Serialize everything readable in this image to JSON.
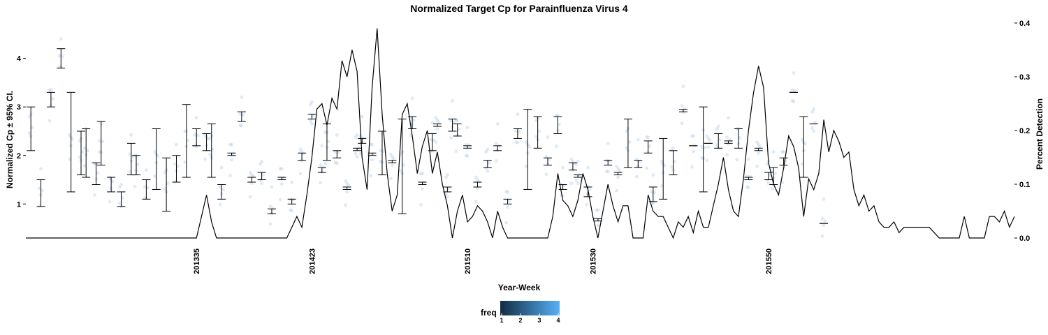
{
  "chart_data": {
    "type": "line",
    "title": "Normalized Target Cp for Parainfluenza Virus 4",
    "xlabel": "Year-Week",
    "ylabel_left": "Normalized Cp  ± 95% CI.",
    "ylabel_right": "Percent Detection",
    "x_tick_labels": [
      "201335",
      "201423",
      "201510",
      "201530",
      "201550"
    ],
    "x_tick_positions": [
      34,
      57,
      88,
      113,
      148
    ],
    "y_left_ticks": [
      "1",
      "2",
      "3",
      "4"
    ],
    "y_left_ticks_values": [
      1,
      2,
      3,
      4
    ],
    "y_left_range": [
      0.3,
      4.8
    ],
    "y_right_ticks": [
      "0.0",
      "0.1",
      "0.2",
      "0.3",
      "0.4"
    ],
    "y_right_ticks_values": [
      0.0,
      0.1,
      0.2,
      0.3,
      0.4
    ],
    "y_right_range": [
      0.0,
      0.4
    ],
    "x_range": [
      0,
      197
    ],
    "legend": {
      "title": "freq",
      "ticks": [
        "1",
        "2",
        "3",
        "4"
      ],
      "color_low": "#132b43",
      "color_high": "#56b1f7"
    },
    "series": [
      {
        "kind": "percent_detection_line",
        "points": [
          [
            0,
            0.0
          ],
          [
            10,
            0.0
          ],
          [
            20,
            0.0
          ],
          [
            30,
            0.0
          ],
          [
            34,
            0.0
          ],
          [
            35,
            0.04
          ],
          [
            36,
            0.08
          ],
          [
            37,
            0.03
          ],
          [
            38,
            0.0
          ],
          [
            45,
            0.0
          ],
          [
            52,
            0.0
          ],
          [
            53,
            0.02
          ],
          [
            54,
            0.04
          ],
          [
            55,
            0.02
          ],
          [
            56,
            0.08
          ],
          [
            57,
            0.15
          ],
          [
            58,
            0.24
          ],
          [
            59,
            0.25
          ],
          [
            60,
            0.21
          ],
          [
            61,
            0.26
          ],
          [
            62,
            0.24
          ],
          [
            63,
            0.33
          ],
          [
            64,
            0.3
          ],
          [
            65,
            0.35
          ],
          [
            66,
            0.31
          ],
          [
            67,
            0.15
          ],
          [
            68,
            0.09
          ],
          [
            69,
            0.28
          ],
          [
            70,
            0.39
          ],
          [
            71,
            0.23
          ],
          [
            72,
            0.12
          ],
          [
            73,
            0.05
          ],
          [
            74,
            0.08
          ],
          [
            75,
            0.23
          ],
          [
            76,
            0.25
          ],
          [
            77,
            0.19
          ],
          [
            78,
            0.12
          ],
          [
            79,
            0.17
          ],
          [
            80,
            0.2
          ],
          [
            81,
            0.12
          ],
          [
            82,
            0.16
          ],
          [
            83,
            0.1
          ],
          [
            84,
            0.06
          ],
          [
            85,
            0.0
          ],
          [
            86,
            0.05
          ],
          [
            87,
            0.08
          ],
          [
            88,
            0.03
          ],
          [
            89,
            0.04
          ],
          [
            90,
            0.06
          ],
          [
            91,
            0.05
          ],
          [
            92,
            0.03
          ],
          [
            93,
            0.0
          ],
          [
            94,
            0.05
          ],
          [
            95,
            0.02
          ],
          [
            96,
            0.0
          ],
          [
            100,
            0.0
          ],
          [
            104,
            0.0
          ],
          [
            105,
            0.04
          ],
          [
            106,
            0.12
          ],
          [
            107,
            0.07
          ],
          [
            108,
            0.06
          ],
          [
            109,
            0.04
          ],
          [
            110,
            0.07
          ],
          [
            111,
            0.12
          ],
          [
            112,
            0.09
          ],
          [
            113,
            0.04
          ],
          [
            114,
            0.0
          ],
          [
            115,
            0.05
          ],
          [
            116,
            0.1
          ],
          [
            117,
            0.06
          ],
          [
            118,
            0.03
          ],
          [
            119,
            0.06
          ],
          [
            120,
            0.06
          ],
          [
            121,
            0.0
          ],
          [
            122,
            0.0
          ],
          [
            123,
            0.0
          ],
          [
            124,
            0.08
          ],
          [
            125,
            0.05
          ],
          [
            126,
            0.04
          ],
          [
            127,
            0.04
          ],
          [
            128,
            0.02
          ],
          [
            129,
            0.0
          ],
          [
            130,
            0.03
          ],
          [
            131,
            0.02
          ],
          [
            132,
            0.04
          ],
          [
            133,
            0.01
          ],
          [
            134,
            0.05
          ],
          [
            135,
            0.02
          ],
          [
            136,
            0.02
          ],
          [
            137,
            0.06
          ],
          [
            138,
            0.1
          ],
          [
            139,
            0.15
          ],
          [
            140,
            0.09
          ],
          [
            141,
            0.05
          ],
          [
            142,
            0.04
          ],
          [
            143,
            0.11
          ],
          [
            144,
            0.2
          ],
          [
            145,
            0.27
          ],
          [
            146,
            0.32
          ],
          [
            147,
            0.28
          ],
          [
            148,
            0.14
          ],
          [
            149,
            0.1
          ],
          [
            150,
            0.08
          ],
          [
            151,
            0.13
          ],
          [
            152,
            0.19
          ],
          [
            153,
            0.17
          ],
          [
            154,
            0.13
          ],
          [
            155,
            0.04
          ],
          [
            156,
            0.11
          ],
          [
            157,
            0.09
          ],
          [
            158,
            0.12
          ],
          [
            159,
            0.22
          ],
          [
            160,
            0.16
          ],
          [
            161,
            0.2
          ],
          [
            162,
            0.18
          ],
          [
            163,
            0.15
          ],
          [
            164,
            0.16
          ],
          [
            165,
            0.09
          ],
          [
            166,
            0.06
          ],
          [
            167,
            0.08
          ],
          [
            168,
            0.05
          ],
          [
            169,
            0.06
          ],
          [
            170,
            0.03
          ],
          [
            171,
            0.02
          ],
          [
            172,
            0.02
          ],
          [
            173,
            0.03
          ],
          [
            174,
            0.01
          ],
          [
            175,
            0.02
          ],
          [
            176,
            0.02
          ],
          [
            177,
            0.02
          ],
          [
            178,
            0.02
          ],
          [
            179,
            0.02
          ],
          [
            180,
            0.02
          ],
          [
            181,
            0.01
          ],
          [
            182,
            0.0
          ],
          [
            183,
            0.0
          ],
          [
            186,
            0.0
          ],
          [
            187,
            0.04
          ],
          [
            188,
            0.0
          ],
          [
            191,
            0.0
          ],
          [
            192,
            0.04
          ],
          [
            193,
            0.04
          ],
          [
            194,
            0.03
          ],
          [
            195,
            0.05
          ],
          [
            196,
            0.02
          ],
          [
            197,
            0.04
          ]
        ]
      },
      {
        "kind": "error_bars",
        "bars": [
          [
            1,
            2.1,
            3.0
          ],
          [
            3,
            0.95,
            1.5
          ],
          [
            5,
            3.0,
            3.3
          ],
          [
            7,
            3.8,
            4.2
          ],
          [
            9,
            1.25,
            3.3
          ],
          [
            11,
            1.6,
            2.5
          ],
          [
            12,
            1.55,
            2.55
          ],
          [
            14,
            1.4,
            1.85
          ],
          [
            15,
            1.8,
            2.7
          ],
          [
            17,
            1.25,
            1.55
          ],
          [
            19,
            0.95,
            1.25
          ],
          [
            21,
            1.6,
            2.25
          ],
          [
            22,
            1.6,
            2.0
          ],
          [
            24,
            1.1,
            1.5
          ],
          [
            26,
            1.3,
            2.55
          ],
          [
            28,
            0.85,
            1.95
          ],
          [
            30,
            1.45,
            2.0
          ],
          [
            32,
            1.55,
            3.05
          ],
          [
            34,
            2.2,
            2.55
          ],
          [
            36,
            2.1,
            2.45
          ],
          [
            37,
            1.55,
            2.65
          ],
          [
            39,
            1.1,
            1.4
          ],
          [
            41,
            2.0,
            2.05
          ],
          [
            43,
            2.7,
            2.9
          ],
          [
            45,
            1.45,
            1.55
          ],
          [
            47,
            1.5,
            1.65
          ],
          [
            49,
            0.8,
            0.9
          ],
          [
            51,
            1.5,
            1.55
          ],
          [
            53,
            1.0,
            1.1
          ],
          [
            55,
            1.9,
            2.05
          ],
          [
            57,
            2.75,
            2.85
          ],
          [
            59,
            1.65,
            1.75
          ],
          [
            60,
            1.9,
            2.65
          ],
          [
            62,
            1.95,
            2.1
          ],
          [
            64,
            1.3,
            1.35
          ],
          [
            66,
            2.1,
            2.15
          ],
          [
            67,
            2.25,
            2.35
          ],
          [
            69,
            2.0,
            2.05
          ],
          [
            71,
            1.6,
            2.5
          ],
          [
            73,
            1.85,
            1.9
          ],
          [
            75,
            0.8,
            2.75
          ],
          [
            77,
            2.55,
            2.8
          ],
          [
            79,
            1.4,
            1.45
          ],
          [
            81,
            2.1,
            2.45
          ],
          [
            82,
            2.6,
            2.65
          ],
          [
            84,
            1.25,
            1.35
          ],
          [
            85,
            2.5,
            2.75
          ],
          [
            86,
            2.4,
            2.65
          ],
          [
            88,
            2.15,
            2.2
          ],
          [
            90,
            1.35,
            1.45
          ],
          [
            92,
            1.75,
            1.9
          ],
          [
            94,
            2.1,
            2.2
          ],
          [
            96,
            1.0,
            1.1
          ],
          [
            98,
            2.35,
            2.55
          ],
          [
            100,
            1.3,
            2.95
          ],
          [
            102,
            2.15,
            2.8
          ],
          [
            104,
            1.8,
            1.95
          ],
          [
            106,
            2.45,
            2.8
          ],
          [
            107,
            1.3,
            1.4
          ],
          [
            109,
            1.7,
            1.85
          ],
          [
            110,
            1.55,
            1.6
          ],
          [
            112,
            1.15,
            1.35
          ],
          [
            114,
            0.65,
            0.7
          ],
          [
            116,
            1.8,
            1.9
          ],
          [
            118,
            1.6,
            1.65
          ],
          [
            120,
            1.75,
            2.75
          ],
          [
            122,
            1.75,
            1.9
          ],
          [
            124,
            2.05,
            2.3
          ],
          [
            125,
            1.05,
            1.35
          ],
          [
            127,
            1.1,
            2.35
          ],
          [
            129,
            1.6,
            2.1
          ],
          [
            131,
            2.9,
            2.95
          ],
          [
            133,
            2.2,
            2.2
          ],
          [
            135,
            1.25,
            3.0
          ],
          [
            136,
            2.25,
            2.25
          ],
          [
            138,
            2.15,
            2.45
          ],
          [
            140,
            2.25,
            2.3
          ],
          [
            142,
            2.15,
            2.55
          ],
          [
            144,
            1.5,
            1.55
          ],
          [
            146,
            2.1,
            2.15
          ],
          [
            148,
            1.5,
            1.65
          ],
          [
            149,
            1.4,
            1.75
          ],
          [
            151,
            1.8,
            1.95
          ],
          [
            153,
            3.3,
            3.3
          ],
          [
            155,
            1.55,
            2.8
          ],
          [
            157,
            2.65,
            2.65
          ],
          [
            159,
            0.6,
            0.6
          ]
        ]
      }
    ]
  }
}
